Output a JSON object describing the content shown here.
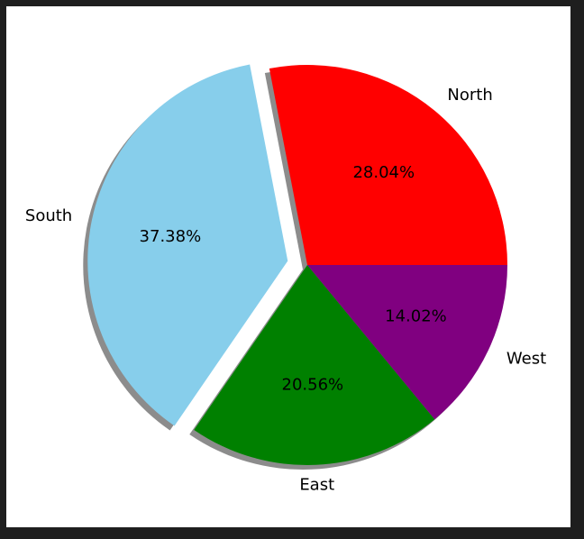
{
  "chart_data": {
    "type": "pie",
    "title": "",
    "slices": [
      {
        "label": "North",
        "value": 28.04,
        "percent_label": "28.04%",
        "color": "#ff0000",
        "explode": false
      },
      {
        "label": "South",
        "value": 37.38,
        "percent_label": "37.38%",
        "color": "#87ceeb",
        "explode": true
      },
      {
        "label": "East",
        "value": 20.56,
        "percent_label": "20.56%",
        "color": "#008000",
        "explode": false
      },
      {
        "label": "West",
        "value": 14.02,
        "percent_label": "14.02%",
        "color": "#800080",
        "explode": false
      }
    ],
    "start_angle_deg": 0,
    "direction": "counterclockwise",
    "shadow": true,
    "legend": "none"
  }
}
